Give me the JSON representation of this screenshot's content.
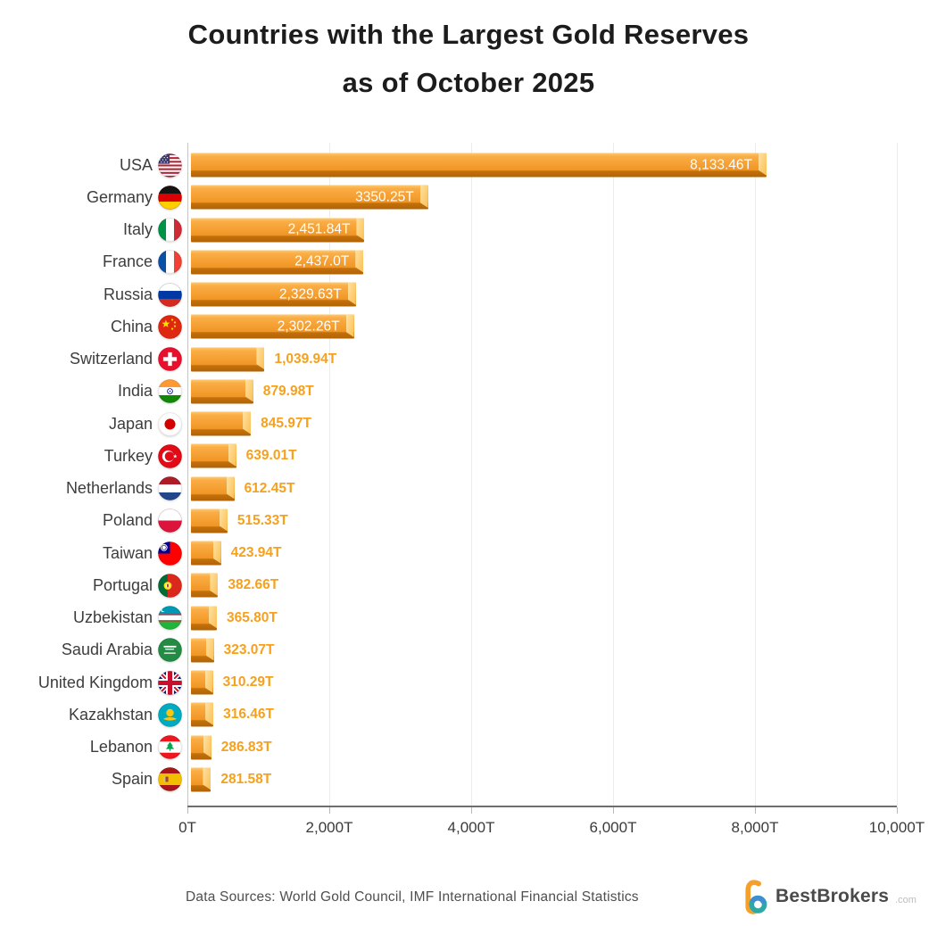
{
  "title": {
    "line1": "Countries with the Largest Gold Reserves",
    "line2": "as of October 2025"
  },
  "chart_data": {
    "type": "bar",
    "orientation": "horizontal",
    "title": "Countries with the Largest Gold Reserves as of October 2025",
    "unit": "tonnes",
    "xlim": [
      0,
      10000
    ],
    "x_tick_values": [
      0,
      2000,
      4000,
      6000,
      8000,
      10000
    ],
    "x_tick_labels": [
      "0T",
      "2,000T",
      "4,000T",
      "6,000T",
      "8,000T",
      "10,000T"
    ],
    "grid": {
      "vertical_gridlines": true,
      "legend": "none"
    },
    "inside_label_threshold": 2000,
    "rows": [
      {
        "country": "USA",
        "flag": "usa",
        "value": 8133.46,
        "label": "8,133.46T"
      },
      {
        "country": "Germany",
        "flag": "germany",
        "value": 3350.25,
        "label": "3350.25T"
      },
      {
        "country": "Italy",
        "flag": "italy",
        "value": 2451.84,
        "label": "2,451.84T"
      },
      {
        "country": "France",
        "flag": "france",
        "value": 2437.0,
        "label": "2,437.0T"
      },
      {
        "country": "Russia",
        "flag": "russia",
        "value": 2329.63,
        "label": "2,329.63T"
      },
      {
        "country": "China",
        "flag": "china",
        "value": 2302.26,
        "label": "2,302.26T"
      },
      {
        "country": "Switzerland",
        "flag": "switzerland",
        "value": 1039.94,
        "label": "1,039.94T"
      },
      {
        "country": "India",
        "flag": "india",
        "value": 879.98,
        "label": "879.98T"
      },
      {
        "country": "Japan",
        "flag": "japan",
        "value": 845.97,
        "label": "845.97T"
      },
      {
        "country": "Turkey",
        "flag": "turkey",
        "value": 639.01,
        "label": "639.01T"
      },
      {
        "country": "Netherlands",
        "flag": "netherlands",
        "value": 612.45,
        "label": "612.45T"
      },
      {
        "country": "Poland",
        "flag": "poland",
        "value": 515.33,
        "label": "515.33T"
      },
      {
        "country": "Taiwan",
        "flag": "taiwan",
        "value": 423.94,
        "label": "423.94T"
      },
      {
        "country": "Portugal",
        "flag": "portugal",
        "value": 382.66,
        "label": "382.66T"
      },
      {
        "country": "Uzbekistan",
        "flag": "uzbekistan",
        "value": 365.8,
        "label": "365.80T"
      },
      {
        "country": "Saudi Arabia",
        "flag": "saudi-arabia",
        "value": 323.07,
        "label": "323.07T"
      },
      {
        "country": "United Kingdom",
        "flag": "uk",
        "value": 310.29,
        "label": "310.29T"
      },
      {
        "country": "Kazakhstan",
        "flag": "kazakhstan",
        "value": 316.46,
        "label": "316.46T"
      },
      {
        "country": "Lebanon",
        "flag": "lebanon",
        "value": 286.83,
        "label": "286.83T"
      },
      {
        "country": "Spain",
        "flag": "spain",
        "value": 281.58,
        "label": "281.58T"
      }
    ]
  },
  "colors": {
    "bar_main": "#F49E30",
    "bar_bottom_shadow": "#B06305",
    "bar_end_cap": "#FBC35D",
    "value_inside": "#FFFFFF",
    "value_outside": "#F6A11E",
    "gridline": "#ECECEC",
    "axis": "#6E6E6E",
    "title_text": "#1C1C1C",
    "country_text": "#3D3D3D"
  },
  "footer": {
    "sources": "Data Sources: World Gold Council, IMF International Financial Statistics",
    "brand": "BestBrokers",
    "brand_suffix": ".com"
  }
}
